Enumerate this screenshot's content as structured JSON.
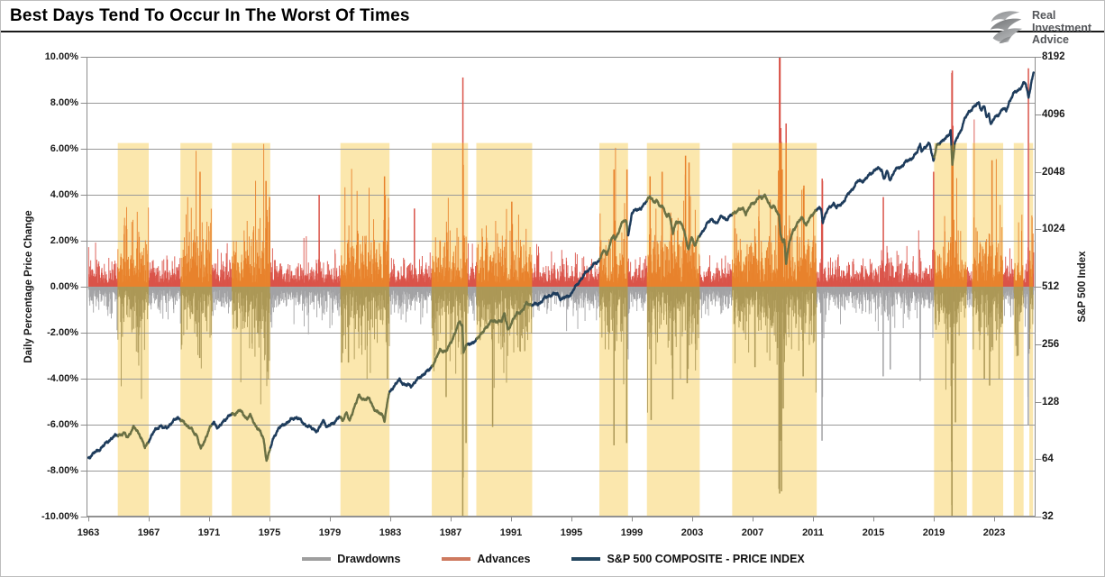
{
  "title": "Best Days Tend To Occur In The Worst Of Times",
  "logo": {
    "name": "Real Investment Advice",
    "lines": [
      "Real",
      "Investment",
      "Advice"
    ]
  },
  "axes": {
    "left": {
      "title": "Daily Percentage Price Change",
      "ticks": [
        "10.00%",
        "8.00%",
        "6.00%",
        "4.00%",
        "2.00%",
        "0.00%",
        "-2.00%",
        "-4.00%",
        "-6.00%",
        "-8.00%",
        "-10.00%"
      ]
    },
    "right": {
      "title": "S&P 500 Index",
      "ticks": [
        "8192",
        "4096",
        "2048",
        "1024",
        "512",
        "256",
        "128",
        "64",
        "32"
      ]
    },
    "x": {
      "ticks": [
        "1963",
        "1967",
        "1971",
        "1975",
        "1979",
        "1983",
        "1987",
        "1991",
        "1995",
        "1999",
        "2003",
        "2007",
        "2011",
        "2015",
        "2019",
        "2023"
      ]
    }
  },
  "legend": {
    "items": [
      {
        "label": "Drawdowns",
        "color": "#9E9E9E"
      },
      {
        "label": "Advances",
        "color": "#CE7A5F"
      },
      {
        "label": "S&P 500 COMPOSITE - PRICE INDEX",
        "color": "#24465F"
      }
    ]
  },
  "palette": {
    "advance": "#DA544A",
    "advance_in_highlight": "#E8832D",
    "drawdown": "#A3A3A5",
    "drawdown_in_highlight": "#AC9857",
    "highlight_band": "#FBE7AD",
    "sp500_line": "#1E3C5C",
    "sp500_line_in_highlight": "#6A7044",
    "gridline": "#999999",
    "plot_border": "#8c8c8c"
  },
  "chart_data": {
    "type": "combo: daily bar pair (advances up / drawdowns down) + log-scale index line with highlighted bear periods",
    "title": "Best Days Tend To Occur In The Worst Of Times",
    "x_range": [
      1963.0,
      2025.7
    ],
    "left_axis": {
      "label": "Daily Percentage Price Change",
      "min": -10,
      "max": 10,
      "tick_step": 2,
      "unit": "%"
    },
    "right_axis": {
      "label": "S&P 500 Index",
      "scale": "log2",
      "min": 32,
      "max": 8192
    },
    "x_ticks_years": [
      1963,
      1967,
      1971,
      1975,
      1979,
      1983,
      1987,
      1991,
      1995,
      1999,
      2003,
      2007,
      2011,
      2015,
      2019,
      2023
    ],
    "grid": "horizontal only",
    "legend_position": "bottom center",
    "highlight_top_pct": 6.25,
    "highlight_periods": [
      [
        1964.95,
        1967.0
      ],
      [
        1969.1,
        1971.2
      ],
      [
        1972.5,
        1975.05
      ],
      [
        1979.7,
        1982.95
      ],
      [
        1985.75,
        1988.15
      ],
      [
        1988.7,
        1992.4
      ],
      [
        1996.85,
        1998.75
      ],
      [
        2000.0,
        2003.5
      ],
      [
        2005.65,
        2011.25
      ],
      [
        2019.02,
        2021.2
      ],
      [
        2021.55,
        2023.6
      ],
      [
        2024.3,
        2024.95
      ],
      [
        2025.33,
        2025.58
      ]
    ],
    "sp500_points": [
      [
        1963.0,
        64
      ],
      [
        1963.5,
        70
      ],
      [
        1964.0,
        76
      ],
      [
        1964.5,
        81
      ],
      [
        1965.0,
        86
      ],
      [
        1965.4,
        88
      ],
      [
        1965.6,
        84
      ],
      [
        1966.0,
        93
      ],
      [
        1966.4,
        86
      ],
      [
        1966.75,
        74
      ],
      [
        1967.0,
        81
      ],
      [
        1967.4,
        90
      ],
      [
        1967.8,
        95
      ],
      [
        1968.0,
        92
      ],
      [
        1968.4,
        98
      ],
      [
        1968.9,
        106
      ],
      [
        1969.2,
        100
      ],
      [
        1969.5,
        96
      ],
      [
        1969.8,
        94
      ],
      [
        1970.0,
        88
      ],
      [
        1970.2,
        86
      ],
      [
        1970.45,
        72
      ],
      [
        1970.7,
        78
      ],
      [
        1971.0,
        92
      ],
      [
        1971.3,
        100
      ],
      [
        1971.6,
        95
      ],
      [
        1971.9,
        99
      ],
      [
        1972.3,
        107
      ],
      [
        1972.7,
        110
      ],
      [
        1973.0,
        118
      ],
      [
        1973.2,
        112
      ],
      [
        1973.5,
        104
      ],
      [
        1973.7,
        108
      ],
      [
        1974.0,
        97
      ],
      [
        1974.3,
        92
      ],
      [
        1974.6,
        83
      ],
      [
        1974.8,
        64
      ],
      [
        1975.0,
        70
      ],
      [
        1975.3,
        83
      ],
      [
        1975.6,
        92
      ],
      [
        1976.0,
        99
      ],
      [
        1976.4,
        103
      ],
      [
        1976.8,
        105
      ],
      [
        1977.2,
        99
      ],
      [
        1977.7,
        95
      ],
      [
        1978.2,
        89
      ],
      [
        1978.6,
        102
      ],
      [
        1978.8,
        94
      ],
      [
        1979.2,
        100
      ],
      [
        1979.6,
        106
      ],
      [
        1979.85,
        101
      ],
      [
        1980.1,
        112
      ],
      [
        1980.3,
        100
      ],
      [
        1980.6,
        121
      ],
      [
        1980.9,
        138
      ],
      [
        1981.2,
        131
      ],
      [
        1981.6,
        131
      ],
      [
        1981.9,
        119
      ],
      [
        1982.2,
        113
      ],
      [
        1982.5,
        110
      ],
      [
        1982.62,
        102
      ],
      [
        1982.9,
        138
      ],
      [
        1983.2,
        152
      ],
      [
        1983.6,
        168
      ],
      [
        1984.0,
        158
      ],
      [
        1984.4,
        153
      ],
      [
        1984.8,
        166
      ],
      [
        1985.2,
        181
      ],
      [
        1985.6,
        189
      ],
      [
        1986.0,
        208
      ],
      [
        1986.3,
        238
      ],
      [
        1986.7,
        236
      ],
      [
        1987.0,
        264
      ],
      [
        1987.3,
        292
      ],
      [
        1987.6,
        334
      ],
      [
        1987.78,
        318
      ],
      [
        1987.85,
        230
      ],
      [
        1988.0,
        250
      ],
      [
        1988.3,
        262
      ],
      [
        1988.7,
        268
      ],
      [
        1989.0,
        288
      ],
      [
        1989.4,
        310
      ],
      [
        1989.7,
        348
      ],
      [
        1990.0,
        336
      ],
      [
        1990.4,
        342
      ],
      [
        1990.55,
        366
      ],
      [
        1990.8,
        300
      ],
      [
        1991.1,
        342
      ],
      [
        1991.4,
        375
      ],
      [
        1991.8,
        388
      ],
      [
        1992.0,
        414
      ],
      [
        1992.4,
        408
      ],
      [
        1992.8,
        420
      ],
      [
        1993.2,
        448
      ],
      [
        1993.7,
        460
      ],
      [
        1994.1,
        468
      ],
      [
        1994.3,
        444
      ],
      [
        1994.7,
        458
      ],
      [
        1995.0,
        467
      ],
      [
        1995.4,
        525
      ],
      [
        1995.8,
        585
      ],
      [
        1996.0,
        625
      ],
      [
        1996.3,
        650
      ],
      [
        1996.55,
        670
      ],
      [
        1996.8,
        690
      ],
      [
        1997.0,
        750
      ],
      [
        1997.2,
        790
      ],
      [
        1997.35,
        760
      ],
      [
        1997.6,
        900
      ],
      [
        1997.8,
        945
      ],
      [
        1997.9,
        905
      ],
      [
        1998.1,
        980
      ],
      [
        1998.4,
        1110
      ],
      [
        1998.65,
        1120
      ],
      [
        1998.75,
        960
      ],
      [
        1998.9,
        1100
      ],
      [
        1999.0,
        1250
      ],
      [
        1999.3,
        1320
      ],
      [
        1999.6,
        1300
      ],
      [
        1999.8,
        1350
      ],
      [
        2000.0,
        1450
      ],
      [
        2000.2,
        1520
      ],
      [
        2000.45,
        1420
      ],
      [
        2000.65,
        1480
      ],
      [
        2000.9,
        1350
      ],
      [
        2001.1,
        1320
      ],
      [
        2001.3,
        1180
      ],
      [
        2001.45,
        1240
      ],
      [
        2001.72,
        970
      ],
      [
        2001.95,
        1140
      ],
      [
        2002.1,
        1130
      ],
      [
        2002.3,
        1100
      ],
      [
        2002.55,
        950
      ],
      [
        2002.75,
        790
      ],
      [
        2002.95,
        920
      ],
      [
        2003.15,
        835
      ],
      [
        2003.4,
        930
      ],
      [
        2003.7,
        1000
      ],
      [
        2004.0,
        1120
      ],
      [
        2004.3,
        1130
      ],
      [
        2004.6,
        1095
      ],
      [
        2004.95,
        1200
      ],
      [
        2005.3,
        1170
      ],
      [
        2005.7,
        1230
      ],
      [
        2006.0,
        1270
      ],
      [
        2006.4,
        1310
      ],
      [
        2006.55,
        1250
      ],
      [
        2006.9,
        1390
      ],
      [
        2007.2,
        1430
      ],
      [
        2007.45,
        1500
      ],
      [
        2007.6,
        1450
      ],
      [
        2007.78,
        1560
      ],
      [
        2008.0,
        1450
      ],
      [
        2008.2,
        1330
      ],
      [
        2008.4,
        1390
      ],
      [
        2008.6,
        1280
      ],
      [
        2008.75,
        1190
      ],
      [
        2008.85,
        950
      ],
      [
        2009.0,
        870
      ],
      [
        2009.1,
        900
      ],
      [
        2009.22,
        680
      ],
      [
        2009.45,
        880
      ],
      [
        2009.7,
        1030
      ],
      [
        2010.0,
        1115
      ],
      [
        2010.3,
        1180
      ],
      [
        2010.55,
        1060
      ],
      [
        2010.85,
        1180
      ],
      [
        2011.1,
        1280
      ],
      [
        2011.35,
        1330
      ],
      [
        2011.55,
        1310
      ],
      [
        2011.65,
        1120
      ],
      [
        2011.85,
        1240
      ],
      [
        2012.1,
        1310
      ],
      [
        2012.4,
        1400
      ],
      [
        2012.55,
        1330
      ],
      [
        2012.9,
        1410
      ],
      [
        2013.2,
        1510
      ],
      [
        2013.6,
        1640
      ],
      [
        2014.0,
        1830
      ],
      [
        2014.4,
        1870
      ],
      [
        2014.8,
        2000
      ],
      [
        2015.2,
        2090
      ],
      [
        2015.55,
        2110
      ],
      [
        2015.7,
        1880
      ],
      [
        2015.9,
        2080
      ],
      [
        2016.1,
        1870
      ],
      [
        2016.4,
        2070
      ],
      [
        2016.8,
        2140
      ],
      [
        2017.1,
        2290
      ],
      [
        2017.5,
        2430
      ],
      [
        2017.9,
        2580
      ],
      [
        2018.1,
        2830
      ],
      [
        2018.2,
        2620
      ],
      [
        2018.5,
        2740
      ],
      [
        2018.73,
        2920
      ],
      [
        2018.98,
        2360
      ],
      [
        2019.2,
        2820
      ],
      [
        2019.5,
        2950
      ],
      [
        2019.8,
        3010
      ],
      [
        2020.05,
        3230
      ],
      [
        2020.12,
        3380
      ],
      [
        2020.23,
        2250
      ],
      [
        2020.4,
        2900
      ],
      [
        2020.6,
        3200
      ],
      [
        2020.8,
        3400
      ],
      [
        2021.0,
        3760
      ],
      [
        2021.3,
        4150
      ],
      [
        2021.6,
        4400
      ],
      [
        2021.9,
        4680
      ],
      [
        2022.0,
        4780
      ],
      [
        2022.15,
        4350
      ],
      [
        2022.35,
        4550
      ],
      [
        2022.5,
        3900
      ],
      [
        2022.65,
        4130
      ],
      [
        2022.78,
        3590
      ],
      [
        2023.0,
        3850
      ],
      [
        2023.3,
        4100
      ],
      [
        2023.55,
        4450
      ],
      [
        2023.8,
        4300
      ],
      [
        2024.0,
        4770
      ],
      [
        2024.3,
        5200
      ],
      [
        2024.6,
        5450
      ],
      [
        2024.8,
        5700
      ],
      [
        2025.0,
        6050
      ],
      [
        2025.1,
        5950
      ],
      [
        2025.28,
        5100
      ],
      [
        2025.45,
        5950
      ],
      [
        2025.62,
        6700
      ]
    ],
    "advance_notable_days": [
      [
        1970.4,
        5.0
      ],
      [
        1974.77,
        4.6
      ],
      [
        1975.01,
        3.9
      ],
      [
        1978.29,
        4.0
      ],
      [
        1982.62,
        4.8
      ],
      [
        1982.66,
        4.0
      ],
      [
        1984.6,
        3.4
      ],
      [
        1987.81,
        9.1
      ],
      [
        1987.83,
        5.3
      ],
      [
        1991.05,
        3.7
      ],
      [
        1997.82,
        5.1
      ],
      [
        1998.68,
        5.1
      ],
      [
        2000.21,
        4.8
      ],
      [
        2001.01,
        5.0
      ],
      [
        2002.56,
        5.7
      ],
      [
        2002.79,
        5.4
      ],
      [
        2008.78,
        10.0
      ],
      [
        2008.82,
        10.0
      ],
      [
        2008.87,
        6.9
      ],
      [
        2008.9,
        6.3
      ],
      [
        2008.96,
        5.1
      ],
      [
        2009.22,
        7.1
      ],
      [
        2010.4,
        4.4
      ],
      [
        2011.61,
        4.7
      ],
      [
        2011.63,
        4.6
      ],
      [
        2015.66,
        3.9
      ],
      [
        2018.99,
        5.0
      ],
      [
        2020.2,
        9.3
      ],
      [
        2020.23,
        9.4
      ],
      [
        2020.24,
        6.2
      ],
      [
        2020.27,
        7.0
      ],
      [
        2022.86,
        5.5
      ],
      [
        2025.27,
        9.5
      ]
    ],
    "drawdown_notable_days": [
      [
        1970.38,
        3.1
      ],
      [
        1974.9,
        3.7
      ],
      [
        1979.78,
        3.3
      ],
      [
        1980.23,
        3.3
      ],
      [
        1982.81,
        4.0
      ],
      [
        1986.7,
        4.8
      ],
      [
        1987.8,
        10.0
      ],
      [
        1987.82,
        8.3
      ],
      [
        1988.02,
        6.8
      ],
      [
        1989.78,
        6.1
      ],
      [
        1997.82,
        6.9
      ],
      [
        1998.66,
        6.8
      ],
      [
        2000.28,
        5.8
      ],
      [
        2001.71,
        4.9
      ],
      [
        2002.67,
        4.2
      ],
      [
        2007.16,
        3.5
      ],
      [
        2008.75,
        8.8
      ],
      [
        2008.77,
        7.6
      ],
      [
        2008.79,
        9.0
      ],
      [
        2008.87,
        6.7
      ],
      [
        2008.92,
        8.9
      ],
      [
        2009.03,
        5.3
      ],
      [
        2010.35,
        3.9
      ],
      [
        2011.6,
        6.7
      ],
      [
        2011.62,
        4.8
      ],
      [
        2015.65,
        3.9
      ],
      [
        2016.12,
        3.6
      ],
      [
        2018.1,
        4.1
      ],
      [
        2020.19,
        7.6
      ],
      [
        2020.2,
        9.5
      ],
      [
        2020.21,
        10.0
      ],
      [
        2020.44,
        5.9
      ],
      [
        2022.35,
        4.0
      ],
      [
        2022.7,
        4.3
      ],
      [
        2024.58,
        3.0
      ],
      [
        2025.25,
        4.8
      ],
      [
        2025.26,
        6.0
      ]
    ],
    "daily_bars_model": {
      "step_years": 0.02,
      "seed": 7,
      "base_vol_pct": 0.42,
      "highlight_vol_pct": 0.95,
      "min_bar_pct": 0.15,
      "tail_exponent": 1.3,
      "vol_events": [
        [
          1966.3,
          0.2,
          0.4
        ],
        [
          1970.4,
          0.3,
          0.3
        ],
        [
          1974.6,
          0.45,
          0.55
        ],
        [
          1980.2,
          0.3,
          0.5
        ],
        [
          1982.6,
          0.35,
          0.35
        ],
        [
          1987.85,
          0.9,
          0.12
        ],
        [
          1989.8,
          0.3,
          0.15
        ],
        [
          1990.7,
          0.25,
          0.3
        ],
        [
          1997.9,
          0.45,
          0.15
        ],
        [
          1998.7,
          0.5,
          0.12
        ],
        [
          2001.7,
          0.35,
          0.25
        ],
        [
          2002.6,
          0.55,
          0.45
        ],
        [
          2008.85,
          1.15,
          0.3
        ],
        [
          2009.3,
          0.5,
          0.3
        ],
        [
          2010.4,
          0.3,
          0.15
        ],
        [
          2011.6,
          0.5,
          0.12
        ],
        [
          2015.7,
          0.3,
          0.15
        ],
        [
          2016.1,
          0.2,
          0.2
        ],
        [
          2018.1,
          0.3,
          0.1
        ],
        [
          2019.0,
          0.3,
          0.1
        ],
        [
          2020.22,
          1.1,
          0.1
        ],
        [
          2022.4,
          0.35,
          0.45
        ],
        [
          2023.1,
          0.2,
          0.3
        ],
        [
          2025.3,
          0.5,
          0.15
        ]
      ]
    }
  }
}
